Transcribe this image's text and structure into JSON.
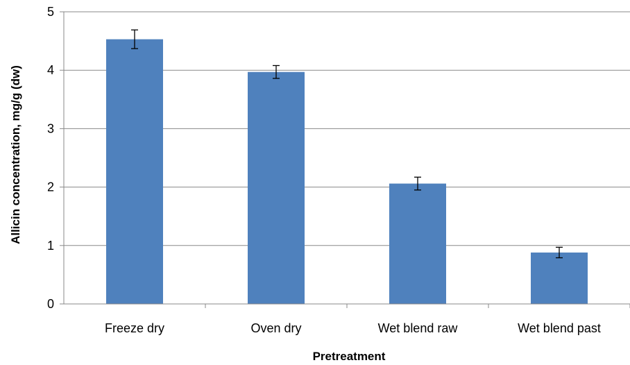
{
  "chart_data": {
    "type": "bar",
    "title": "",
    "xlabel": "Pretreatment",
    "ylabel": "Allicin concentration, mg/g (dw)",
    "categories": [
      "Freeze dry",
      "Oven dry",
      "Wet blend raw",
      "Wet blend past"
    ],
    "values": [
      4.53,
      3.97,
      2.06,
      0.88
    ],
    "errors": [
      0.16,
      0.11,
      0.11,
      0.09
    ],
    "ylim": [
      0,
      5
    ],
    "yticks": [
      "0",
      "1",
      "2",
      "3",
      "4",
      "5"
    ],
    "grid": true,
    "legend": "none"
  },
  "colors": {
    "bar": "#4f81bd",
    "grid": "#888888",
    "axis": "#888888",
    "error_bar": "#000000"
  }
}
